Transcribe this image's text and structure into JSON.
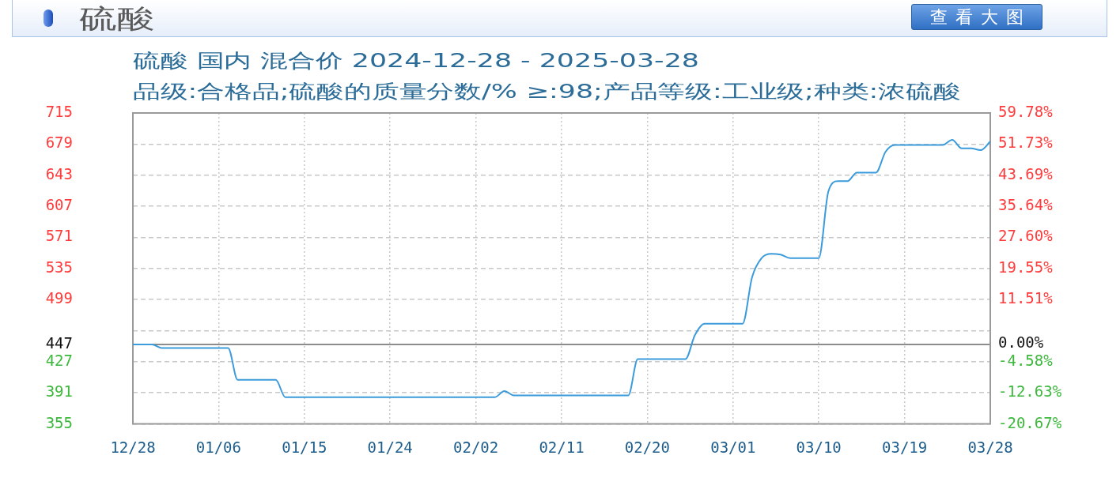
{
  "chart_data": {
    "type": "line",
    "title": "硫酸 国内 混合价 2024-12-28 - 2025-03-28",
    "subtitle": "品级:合格品;硫酸的质量分数/% ≥:98;产品等级:工业级;种类:浓硫酸",
    "annotations": [
      "硫酸",
      "查看大图"
    ],
    "x": [
      "2024-12-28",
      "2024-12-30",
      "2024-12-31",
      "2025-01-07",
      "2025-01-08",
      "2025-01-12",
      "2025-01-13",
      "2025-02-04",
      "2025-02-05",
      "2025-02-06",
      "2025-02-18",
      "2025-02-19",
      "2025-02-24",
      "2025-02-25",
      "2025-02-26",
      "2025-03-02",
      "2025-03-03",
      "2025-03-04",
      "2025-03-05",
      "2025-03-06",
      "2025-03-07",
      "2025-03-10",
      "2025-03-11",
      "2025-03-12",
      "2025-03-13",
      "2025-03-14",
      "2025-03-16",
      "2025-03-17",
      "2025-03-18",
      "2025-03-23",
      "2025-03-24",
      "2025-03-25",
      "2025-03-26",
      "2025-03-27",
      "2025-03-28"
    ],
    "values": [
      447,
      447,
      443,
      443,
      406,
      406,
      386,
      386,
      393,
      388,
      388,
      430,
      430,
      458,
      471,
      471,
      525,
      547,
      552,
      551,
      547,
      547,
      624,
      636,
      636,
      646,
      646,
      670,
      678,
      678,
      684,
      674,
      674,
      672,
      682
    ],
    "color": "#3b9bdb",
    "xlim": [
      "2024-12-28",
      "2025-03-28"
    ],
    "xticks": [
      {
        "value": "2024-12-28",
        "label": "12/28"
      },
      {
        "value": "2025-01-06",
        "label": "01/06"
      },
      {
        "value": "2025-01-15",
        "label": "01/15"
      },
      {
        "value": "2025-01-24",
        "label": "01/24"
      },
      {
        "value": "2025-02-02",
        "label": "02/02"
      },
      {
        "value": "2025-02-11",
        "label": "02/11"
      },
      {
        "value": "2025-02-20",
        "label": "02/20"
      },
      {
        "value": "2025-03-01",
        "label": "03/01"
      },
      {
        "value": "2025-03-10",
        "label": "03/10"
      },
      {
        "value": "2025-03-19",
        "label": "03/19"
      },
      {
        "value": "2025-03-28",
        "label": "03/28"
      }
    ],
    "ylim": [
      355,
      715
    ],
    "yticks": [
      355,
      391,
      427,
      447,
      {
        "value": 463,
        "label": null
      },
      499,
      535,
      571,
      607,
      643,
      679,
      715
    ],
    "y2lim": [
      -20.67,
      59.78
    ],
    "y2ticks": [
      {
        "value": -20.67,
        "label": "-20.67%"
      },
      {
        "value": -12.63,
        "label": "-12.63%"
      },
      {
        "value": -4.58,
        "label": "-4.58%"
      },
      {
        "value": 0,
        "label": "0.00%"
      },
      {
        "value": 11.51,
        "label": "11.51%"
      },
      {
        "value": 19.55,
        "label": "19.55%"
      },
      {
        "value": 27.6,
        "label": "27.60%"
      },
      {
        "value": 35.64,
        "label": "35.64%"
      },
      {
        "value": 43.69,
        "label": "43.69%"
      },
      {
        "value": 51.73,
        "label": "51.73%"
      },
      {
        "value": 59.78,
        "label": "59.78%"
      }
    ],
    "ref_lines": [
      {
        "axis": "y",
        "value": 447
      }
    ],
    "grid": true
  }
}
